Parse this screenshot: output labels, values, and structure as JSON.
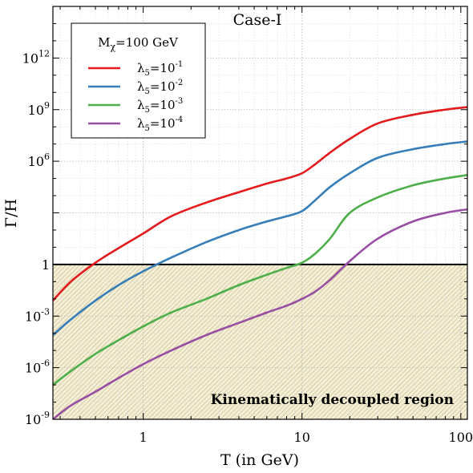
{
  "chart_data": {
    "type": "line",
    "title": "Case-I",
    "xlabel": "T (in GeV)",
    "ylabel": "Γ/H",
    "xscale": "log",
    "yscale": "log",
    "xlim": [
      0.27,
      110
    ],
    "ylim": [
      1e-09,
      1000000000000000.0
    ],
    "x_ticks": [
      {
        "value": 1,
        "label": "1"
      },
      {
        "value": 10,
        "label": "10"
      },
      {
        "value": 100,
        "label": "100"
      }
    ],
    "y_ticks": [
      {
        "value": 1e-09,
        "base": "10",
        "exp": "-9"
      },
      {
        "value": 1e-06,
        "base": "10",
        "exp": "-6"
      },
      {
        "value": 0.001,
        "base": "10",
        "exp": "-3"
      },
      {
        "value": 1,
        "base": "1",
        "exp": ""
      },
      {
        "value": 1000000.0,
        "base": "10",
        "exp": "6"
      },
      {
        "value": 1000000000.0,
        "base": "10",
        "exp": "9"
      },
      {
        "value": 1000000000000.0,
        "base": "10",
        "exp": "12"
      }
    ],
    "grid": true,
    "reference_line": {
      "y": 1,
      "color": "#000000"
    },
    "shaded_region": {
      "y_from": 1e-09,
      "y_to": 1,
      "label": "Kinematically decoupled region",
      "fill": "#f4efd6",
      "hatch": "#b8ab70"
    },
    "legend": {
      "title_main": "M",
      "title_sub": "χ",
      "title_rest": "=100 GeV",
      "placement": "top-left"
    },
    "series": [
      {
        "name": "λ5=10-1",
        "label_main": "λ",
        "label_sub": "5",
        "label_base": "=10",
        "label_exp": "-1",
        "color": "#e41a1c",
        "x": [
          0.27,
          0.35,
          0.5,
          0.7,
          1.0,
          1.5,
          2.5,
          4,
          6,
          8,
          10,
          12,
          15,
          20,
          30,
          50,
          80,
          110
        ],
        "y": [
          0.0079,
          0.1,
          1.26,
          8.9,
          63,
          631,
          3980,
          15800,
          50100,
          100000,
          200000,
          631000,
          3160000,
          20000000,
          158000000,
          501000000,
          1000000000,
          1410000000
        ]
      },
      {
        "name": "λ5=10-2",
        "label_main": "λ",
        "label_sub": "5",
        "label_base": "=10",
        "label_exp": "-2",
        "color": "#377eb8",
        "x": [
          0.27,
          0.35,
          0.5,
          0.7,
          1.0,
          1.5,
          2.5,
          4,
          6,
          8,
          10,
          12,
          15,
          20,
          30,
          50,
          80,
          110
        ],
        "y": [
          7.9e-05,
          0.00063,
          0.0079,
          0.063,
          0.4,
          2.5,
          20,
          100,
          316,
          631,
          1260,
          5010,
          31600,
          200000,
          1580000,
          5010000,
          10000000,
          14100000
        ]
      },
      {
        "name": "λ5=10-3",
        "label_main": "λ",
        "label_sub": "5",
        "label_base": "=10",
        "label_exp": "-3",
        "color": "#4daf4a",
        "x": [
          0.27,
          0.35,
          0.5,
          0.7,
          1.0,
          1.5,
          2.5,
          4,
          6,
          8,
          10,
          12,
          15,
          20,
          30,
          50,
          80,
          110
        ],
        "y": [
          1e-07,
          6.3e-07,
          6.3e-06,
          4e-05,
          0.00025,
          0.0016,
          0.01,
          0.063,
          0.251,
          0.631,
          1.26,
          3.98,
          31.6,
          1000,
          7940,
          39800,
          100000,
          158000
        ]
      },
      {
        "name": "λ5=10-4",
        "label_main": "λ",
        "label_sub": "5",
        "label_base": "=10",
        "label_exp": "-4",
        "color": "#984ea3",
        "x": [
          0.27,
          0.35,
          0.5,
          0.7,
          1.0,
          1.5,
          2.5,
          4,
          6,
          8,
          10,
          12,
          15,
          20,
          30,
          50,
          80,
          110
        ],
        "y": [
          1e-09,
          6.3e-09,
          4e-08,
          2.51e-07,
          1.6e-06,
          1e-05,
          7.9e-05,
          0.0004,
          0.0016,
          0.004,
          0.01,
          0.0251,
          0.126,
          1.58,
          31.6,
          316,
          1000,
          1580
        ]
      }
    ]
  }
}
